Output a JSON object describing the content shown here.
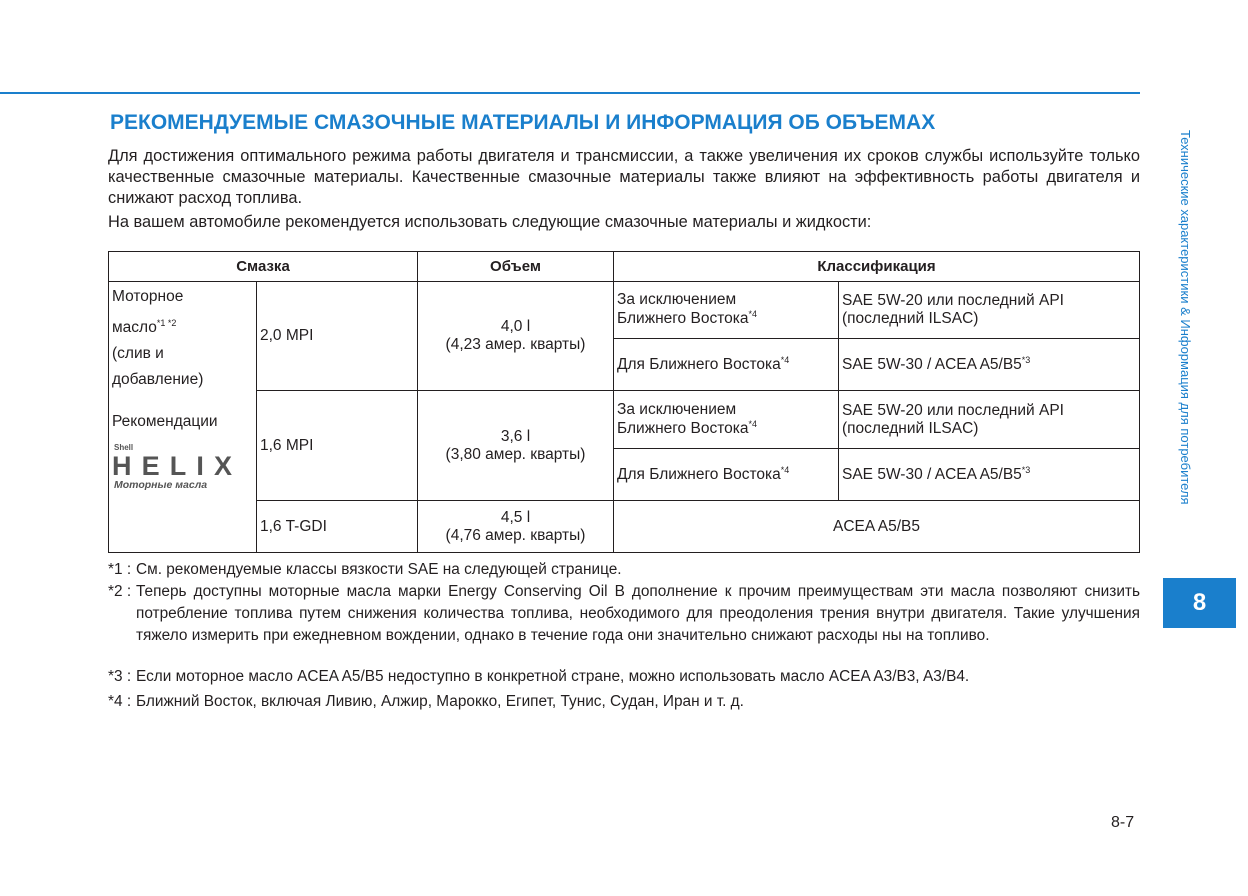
{
  "title": "РЕКОМЕНДУЕМЫЕ СМАЗОЧНЫЕ МАТЕРИАЛЫ И ИНФОРМАЦИЯ ОБ ОБЪЕМАХ",
  "intro": "Для достижения оптимального режима работы двигателя и трансмиссии, а также увеличения их сроков службы используйте только качественные смазочные материалы. Качественные смазочные материалы также влияют на эффективность работы двигателя и снижают расход топлива.",
  "intro2": "На вашем автомобиле рекомендуется использовать следующие смазочные материалы и жидкости:",
  "table": {
    "headers": [
      "Смазка",
      "Объем",
      "Классификация"
    ],
    "lubricant": {
      "l1": "Моторное",
      "l2": "масло",
      "sup": "*1 *2",
      "l3": "(слив и",
      "l4": "добавление)",
      "rec": "Рекомендации"
    },
    "logo": {
      "brand": "Shell",
      "name": "HELIX",
      "sub": "Моторные масла"
    },
    "rows": [
      {
        "engine": "2,0 MPI",
        "vol": "4,0 l",
        "vol2": "(4,23 амер. кварты)",
        "c1a": "За исключением",
        "c1b": "Ближнего Востока",
        "c1s": "*4",
        "s1a": "SAE 5W-20 или последний API",
        "s1b": "(последний ILSAC)",
        "c2": "Для Ближнего Востока",
        "c2s": "*4",
        "s2": "SAE 5W-30 / ACEA A5/B5",
        "s2s": "*3"
      },
      {
        "engine": "1,6 MPI",
        "vol": "3,6 l",
        "vol2": "(3,80 амер. кварты)",
        "c1a": "За исключением",
        "c1b": "Ближнего Востока",
        "c1s": "*4",
        "s1a": "SAE 5W-20 или последний API",
        "s1b": "(последний ILSAC)",
        "c2": "Для Ближнего Востока",
        "c2s": "*4",
        "s2": "SAE 5W-30 / ACEA A5/B5",
        "s2s": "*3"
      },
      {
        "engine": "1,6 T-GDI",
        "vol": "4,5 l",
        "vol2": "(4,76 амер. кварты)",
        "spec": "ACEA A5/B5"
      }
    ]
  },
  "footnotes": [
    {
      "k": "*1 :",
      "t": "См. рекомендуемые классы вязкости SAE на следующей странице."
    },
    {
      "k": "*2 :",
      "t": "Теперь доступны моторные масла марки Energy Conserving Oil B дополнение к прочим преимуществам эти масла позволяют снизить потребление топлива путем снижения количества топлива, необходимого для преодоления трения внутри двигателя. Такие улучшения тяжело измерить при ежедневном вождении, однако в течение года они значительно снижают расходы ны на топливо."
    },
    {
      "k": "*3 :",
      "t": "Если моторное масло ACEA A5/B5 недоступно в конкретной стране, можно использовать масло ACEA A3/B3, A3/B4."
    },
    {
      "k": "*4 :",
      "t": "Ближний Восток, включая Ливию, Алжир, Марокко, Египет, Тунис, Судан, Иран и т. д."
    }
  ],
  "side_label": "Технические характеристики & Информация для потребителя",
  "chapter": "8",
  "page_number": "8-7",
  "colors": {
    "accent": "#1a7fcc"
  }
}
